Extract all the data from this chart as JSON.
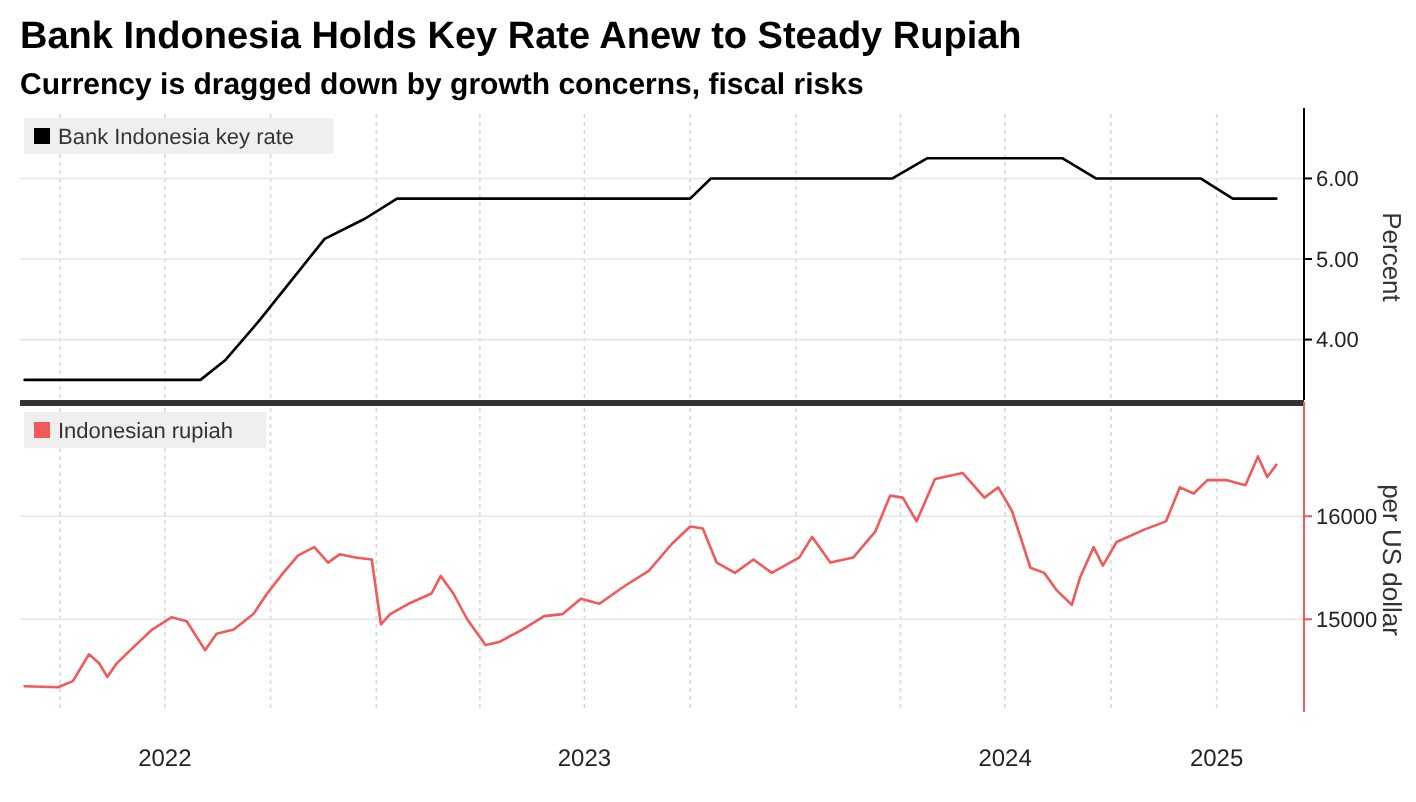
{
  "chart_data": [
    {
      "type": "line",
      "title": "Bank Indonesia Holds Key Rate Anew to Steady Rupiah",
      "subtitle": "Currency is dragged down by growth concerns, fiscal risks",
      "ylabel": "Percent",
      "xlim": [
        "2022-02-25",
        "2025-03-18"
      ],
      "xticks": [
        {
          "value": "2022-04-01",
          "label": null
        },
        {
          "value": "2022-07-01",
          "label": null
        },
        {
          "value": "2022-10-01",
          "label": null
        },
        {
          "value": "2023-01-01",
          "label": null
        },
        {
          "value": "2023-04-01",
          "label": null
        },
        {
          "value": "2023-07-01",
          "label": null
        },
        {
          "value": "2023-10-01",
          "label": null
        },
        {
          "value": "2024-01-01",
          "label": null
        },
        {
          "value": "2024-04-01",
          "label": null
        },
        {
          "value": "2024-07-01",
          "label": null
        },
        {
          "value": "2024-10-01",
          "label": null
        },
        {
          "value": "2025-01-01",
          "label": null
        }
      ],
      "ylim": [
        3.25,
        6.8
      ],
      "yticks": [
        {
          "value": 4,
          "label": "4.00"
        },
        {
          "value": 5,
          "label": "5.00"
        },
        {
          "value": 6,
          "label": "6.00"
        }
      ],
      "tick_labels": "y",
      "grid": true,
      "legend": "top left",
      "series": [
        {
          "name": "Bank Indonesia key rate",
          "color": "#000000",
          "x": [
            "2022-03-01",
            "2022-08-01",
            "2022-08-23",
            "2022-09-22",
            "2022-10-20",
            "2022-11-17",
            "2022-12-22",
            "2023-01-19",
            "2023-10-01",
            "2023-10-19",
            "2024-03-25",
            "2024-04-24",
            "2024-08-20",
            "2024-09-18",
            "2024-12-18",
            "2025-01-15",
            "2025-02-22"
          ],
          "values": [
            3.5,
            3.5,
            3.75,
            4.25,
            4.75,
            5.25,
            5.5,
            5.75,
            5.75,
            6.0,
            6.0,
            6.25,
            6.25,
            6.0,
            6.0,
            5.75,
            5.75
          ]
        }
      ]
    },
    {
      "type": "line",
      "ylabel": "per US dollar",
      "xlim": [
        "2022-02-25",
        "2025-03-18"
      ],
      "xticks": [
        {
          "value": "2022-04-01",
          "label": null
        },
        {
          "value": "2022-07-01",
          "label": "2022"
        },
        {
          "value": "2022-10-01",
          "label": null
        },
        {
          "value": "2023-01-01",
          "label": null
        },
        {
          "value": "2023-04-01",
          "label": null
        },
        {
          "value": "2023-07-01",
          "label": "2023"
        },
        {
          "value": "2023-10-01",
          "label": null
        },
        {
          "value": "2024-01-01",
          "label": null
        },
        {
          "value": "2024-04-01",
          "label": null
        },
        {
          "value": "2024-07-01",
          "label": "2024"
        },
        {
          "value": "2024-10-01",
          "label": null
        },
        {
          "value": "2025-01-01",
          "label": "2025"
        }
      ],
      "ylim": [
        14100,
        17050
      ],
      "yticks": [
        15000,
        16000
      ],
      "grid": true,
      "legend": "top left",
      "series": [
        {
          "name": "Indonesian rupiah",
          "color": "#f05a5a",
          "x": [
            "2022-03-01",
            "2022-03-30",
            "2022-04-12",
            "2022-04-26",
            "2022-05-05",
            "2022-05-12",
            "2022-05-20",
            "2022-06-01",
            "2022-06-20",
            "2022-07-07",
            "2022-07-20",
            "2022-08-05",
            "2022-08-15",
            "2022-08-30",
            "2022-09-16",
            "2022-09-28",
            "2022-10-12",
            "2022-10-25",
            "2022-11-08",
            "2022-11-20",
            "2022-11-30",
            "2022-12-14",
            "2022-12-28",
            "2023-01-05",
            "2023-01-13",
            "2023-01-29",
            "2023-02-18",
            "2023-02-26",
            "2023-03-09",
            "2023-03-21",
            "2023-04-06",
            "2023-04-18",
            "2023-05-08",
            "2023-05-27",
            "2023-06-12",
            "2023-06-28",
            "2023-07-14",
            "2023-08-06",
            "2023-08-26",
            "2023-09-15",
            "2023-10-01",
            "2023-10-12",
            "2023-10-24",
            "2023-11-09",
            "2023-11-25",
            "2023-12-11",
            "2024-01-04",
            "2024-01-15",
            "2024-01-31",
            "2024-02-20",
            "2024-03-10",
            "2024-03-23",
            "2024-04-03",
            "2024-04-15",
            "2024-05-01",
            "2024-05-25",
            "2024-06-13",
            "2024-06-25",
            "2024-07-07",
            "2024-07-23",
            "2024-08-04",
            "2024-08-15",
            "2024-08-28",
            "2024-09-04",
            "2024-09-16",
            "2024-09-24",
            "2024-10-06",
            "2024-10-30",
            "2024-11-18",
            "2024-11-30",
            "2024-12-12",
            "2024-12-24",
            "2025-01-10",
            "2025-01-26",
            "2025-02-06",
            "2025-02-14",
            "2025-02-22"
          ],
          "values": [
            14350,
            14340,
            14400,
            14660,
            14570,
            14440,
            14570,
            14700,
            14900,
            15020,
            14980,
            14700,
            14860,
            14900,
            15050,
            15250,
            15450,
            15620,
            15700,
            15550,
            15630,
            15600,
            15580,
            14950,
            15050,
            15150,
            15250,
            15420,
            15250,
            15000,
            14750,
            14780,
            14900,
            15030,
            15050,
            15200,
            15150,
            15330,
            15470,
            15730,
            15900,
            15880,
            15550,
            15450,
            15580,
            15450,
            15600,
            15800,
            15550,
            15600,
            15850,
            16200,
            16180,
            15950,
            16360,
            16420,
            16180,
            16280,
            16050,
            15500,
            15450,
            15280,
            15140,
            15400,
            15700,
            15520,
            15750,
            15870,
            15950,
            16280,
            16220,
            16350,
            16350,
            16300,
            16580,
            16380,
            16500
          ]
        }
      ]
    }
  ]
}
